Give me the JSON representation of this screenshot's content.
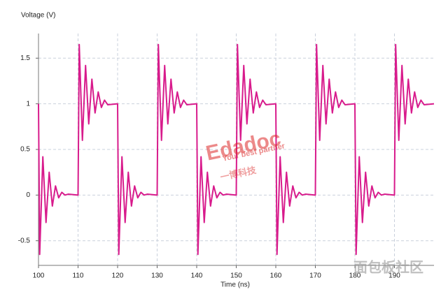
{
  "chart_data": {
    "type": "line",
    "y_label": "Voltage (V)",
    "x_label": "Time (ns)",
    "color": "#d81b8c",
    "x": [
      100,
      100.3,
      101.1,
      101.9,
      102.7,
      103.5,
      104.3,
      105.1,
      105.9,
      106.7,
      107.5,
      110,
      110.3,
      111.1,
      111.9,
      112.7,
      113.5,
      114.3,
      115.1,
      115.9,
      116.7,
      117.5,
      120,
      120.3,
      121.1,
      121.9,
      122.7,
      123.5,
      124.3,
      125.1,
      125.9,
      126.7,
      127.5,
      130,
      130.3,
      131.1,
      131.9,
      132.7,
      133.5,
      134.3,
      135.1,
      135.9,
      136.7,
      137.5,
      140,
      140.3,
      141.1,
      141.9,
      142.7,
      143.5,
      144.3,
      145.1,
      145.9,
      146.7,
      147.5,
      150,
      150.3,
      151.1,
      151.9,
      152.7,
      153.5,
      154.3,
      155.1,
      155.9,
      156.7,
      157.5,
      160,
      160.3,
      161.1,
      161.9,
      162.7,
      163.5,
      164.3,
      165.1,
      165.9,
      166.7,
      167.5,
      170,
      170.3,
      171.1,
      171.9,
      172.7,
      173.5,
      174.3,
      175.1,
      175.9,
      176.7,
      177.5,
      180,
      180.3,
      181.1,
      181.9,
      182.7,
      183.5,
      184.3,
      185.1,
      185.9,
      186.7,
      187.5,
      190,
      190.3,
      191.1,
      191.9,
      192.7,
      193.5,
      194.3,
      195.1,
      195.9,
      196.7,
      197.5,
      200
    ],
    "values": [
      1,
      -0.65,
      0.42,
      -0.3,
      0.25,
      -0.12,
      0.1,
      -0.03,
      0.03,
      0,
      0.01,
      0,
      1.65,
      0.6,
      1.42,
      0.78,
      1.27,
      0.9,
      1.13,
      0.96,
      1.04,
      0.99,
      1,
      -0.65,
      0.42,
      -0.3,
      0.25,
      -0.12,
      0.1,
      -0.03,
      0.03,
      0,
      0.01,
      0,
      1.65,
      0.6,
      1.42,
      0.78,
      1.27,
      0.9,
      1.13,
      0.96,
      1.04,
      0.99,
      1,
      -0.65,
      0.42,
      -0.3,
      0.25,
      -0.12,
      0.1,
      -0.03,
      0.03,
      0,
      0.01,
      0,
      1.65,
      0.6,
      1.42,
      0.78,
      1.27,
      0.9,
      1.13,
      0.96,
      1.04,
      0.99,
      1,
      -0.65,
      0.42,
      -0.3,
      0.25,
      -0.12,
      0.1,
      -0.03,
      0.03,
      0,
      0.01,
      0,
      1.65,
      0.6,
      1.42,
      0.78,
      1.27,
      0.9,
      1.13,
      0.96,
      1.04,
      0.99,
      1,
      -0.65,
      0.42,
      -0.3,
      0.25,
      -0.12,
      0.1,
      -0.03,
      0.03,
      0,
      0.01,
      0,
      1.65,
      0.6,
      1.42,
      0.78,
      1.27,
      0.9,
      1.13,
      0.96,
      1.04,
      0.99,
      1
    ],
    "xlim": [
      100,
      200
    ],
    "ylim": [
      -0.77,
      1.77
    ],
    "xticks": [
      100,
      110,
      120,
      130,
      140,
      150,
      160,
      170,
      180,
      190
    ],
    "yticks": [
      -0.5,
      0,
      0.5,
      1,
      1.5
    ],
    "grid": true,
    "watermarks": [
      "Edadoc",
      "Your best partner",
      "一博科技",
      "面包板社区"
    ]
  }
}
